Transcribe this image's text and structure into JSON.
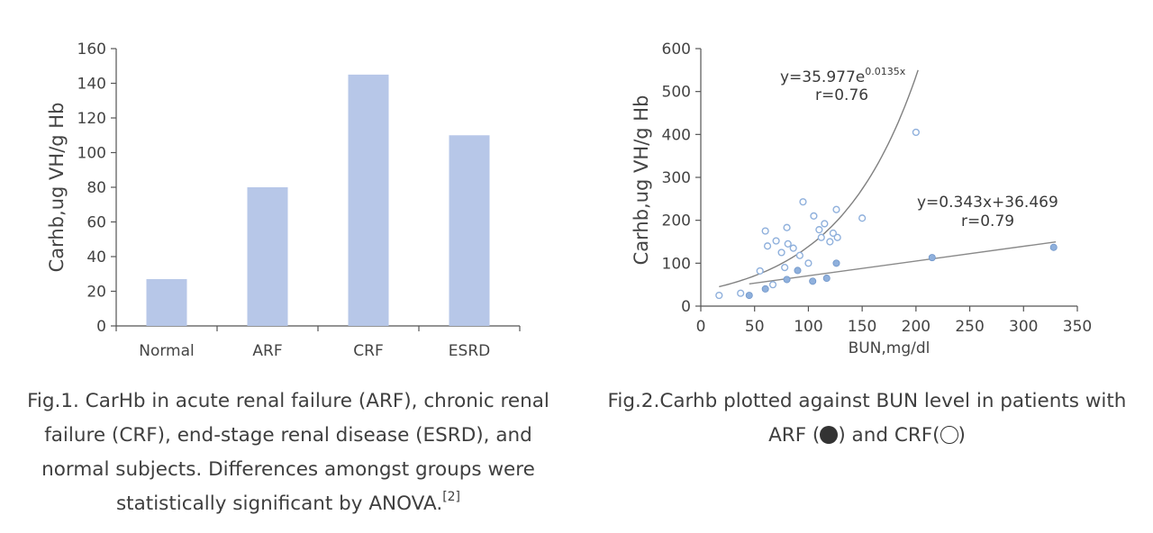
{
  "chart_data": [
    {
      "type": "bar",
      "categories": [
        "Normal",
        "ARF",
        "CRF",
        "ESRD"
      ],
      "values": [
        27,
        80,
        145,
        110
      ],
      "ylabel": "Carhb,ug VH/g Hb",
      "xlabel": "",
      "ylim": [
        0,
        160
      ],
      "yticks": [
        0,
        20,
        40,
        60,
        80,
        100,
        120,
        140,
        160
      ],
      "color": "#b7c7e8"
    },
    {
      "type": "scatter",
      "xlabel": "BUN,mg/dl",
      "ylabel": "Carhb,ug VH/g Hb",
      "xlim": [
        0,
        350
      ],
      "ylim": [
        0,
        600
      ],
      "xticks": [
        0,
        50,
        100,
        150,
        200,
        250,
        300,
        350
      ],
      "yticks": [
        0,
        100,
        200,
        300,
        400,
        500,
        600
      ],
      "series": [
        {
          "name": "CRF",
          "marker": "open",
          "points": [
            [
              17,
              25
            ],
            [
              37,
              30
            ],
            [
              55,
              82
            ],
            [
              60,
              175
            ],
            [
              62,
              140
            ],
            [
              67,
              50
            ],
            [
              70,
              152
            ],
            [
              75,
              125
            ],
            [
              78,
              90
            ],
            [
              80,
              183
            ],
            [
              81,
              145
            ],
            [
              86,
              135
            ],
            [
              92,
              118
            ],
            [
              95,
              243
            ],
            [
              100,
              100
            ],
            [
              105,
              210
            ],
            [
              110,
              178
            ],
            [
              112,
              160
            ],
            [
              115,
              192
            ],
            [
              120,
              150
            ],
            [
              123,
              170
            ],
            [
              126,
              225
            ],
            [
              127,
              160
            ],
            [
              150,
              205
            ],
            [
              200,
              405
            ]
          ]
        },
        {
          "name": "ARF",
          "marker": "filled",
          "points": [
            [
              45,
              25
            ],
            [
              60,
              40
            ],
            [
              80,
              62
            ],
            [
              90,
              83
            ],
            [
              104,
              58
            ],
            [
              117,
              65
            ],
            [
              126,
              100
            ],
            [
              215,
              113
            ],
            [
              328,
              137
            ]
          ]
        }
      ],
      "fits": [
        {
          "name": "CRF exponential fit",
          "equation_base": "y=35.977e",
          "equation_exp": "0.0135x",
          "r": "r=0.76",
          "a": 35.977,
          "b": 0.0135,
          "x_range": [
            17,
            202
          ]
        },
        {
          "name": "ARF linear fit",
          "equation": "y=0.343x+36.469",
          "r": "r=0.79",
          "slope": 0.343,
          "intercept": 36.469,
          "x_range": [
            45,
            330
          ]
        }
      ],
      "marker_color": "#8fb0dc"
    }
  ],
  "captions": {
    "fig1_lines": [
      "Fig.1. CarHb in acute renal failure (ARF), chronic renal",
      "failure (CRF), end-stage renal disease (ESRD), and",
      "normal subjects. Differences amongst groups were",
      "statistically significant by ANOVA."
    ],
    "fig1_ref": "[2]",
    "fig2_line1": "Fig.2.Carhb plotted against BUN level in patients with",
    "fig2_prefix": "ARF (",
    "fig2_middle": ") and CRF(",
    "fig2_suffix": ")"
  }
}
